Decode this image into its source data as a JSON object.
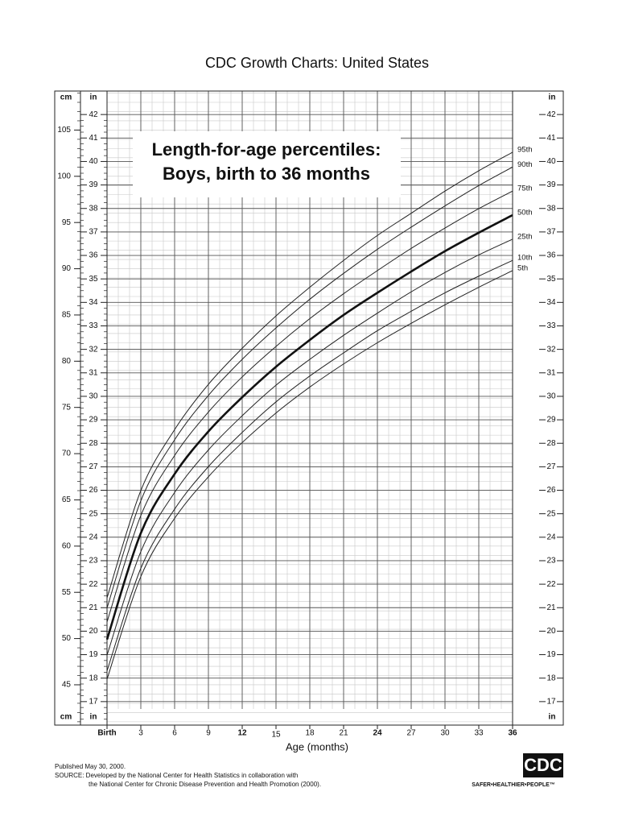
{
  "chart_data": {
    "type": "line",
    "title": "CDC Growth Charts: United States",
    "subtitle": [
      "Length-for-age percentiles:",
      "Boys, birth to 36 months"
    ],
    "x_label": "Age (months)",
    "y_label": "cm",
    "y2_label": "in",
    "x": [
      0,
      3,
      6,
      9,
      12,
      15,
      18,
      21,
      24,
      27,
      30,
      33,
      36
    ],
    "xlim": [
      0,
      36
    ],
    "xticks": [
      {
        "value": 0,
        "label": "Birth"
      },
      3,
      6,
      9,
      12,
      15,
      18,
      21,
      24,
      27,
      30,
      33,
      36
    ],
    "ylim": [
      40.64,
      109.22
    ],
    "yticks": [
      45,
      50,
      55,
      60,
      65,
      70,
      75,
      80,
      85,
      90,
      95,
      100,
      105
    ],
    "y2lim": [
      16,
      43
    ],
    "y2ticks": [
      17,
      18,
      19,
      20,
      21,
      22,
      23,
      24,
      25,
      26,
      27,
      28,
      29,
      30,
      31,
      32,
      33,
      34,
      35,
      36,
      37,
      38,
      39,
      40,
      41,
      42
    ],
    "grid": true,
    "series": [
      {
        "name": "5th",
        "color": "#222222",
        "width": 1,
        "values": [
          45.6,
          56.7,
          63.0,
          67.5,
          71.2,
          74.4,
          77.2,
          79.7,
          82.0,
          84.1,
          86.1,
          88.0,
          89.8
        ]
      },
      {
        "name": "10th",
        "color": "#222222",
        "width": 1,
        "values": [
          46.5,
          57.6,
          64.0,
          68.6,
          72.3,
          75.6,
          78.4,
          80.9,
          83.3,
          85.4,
          87.4,
          89.2,
          90.9
        ]
      },
      {
        "name": "25th",
        "color": "#222222",
        "width": 1,
        "values": [
          48.2,
          59.4,
          65.8,
          70.4,
          74.1,
          77.4,
          80.2,
          82.8,
          85.2,
          87.5,
          89.6,
          91.5,
          93.2
        ]
      },
      {
        "name": "50th",
        "color": "#111111",
        "width": 2.6,
        "values": [
          49.9,
          61.4,
          67.8,
          72.4,
          76.1,
          79.4,
          82.3,
          85.0,
          87.4,
          89.7,
          91.9,
          93.9,
          95.8
        ]
      },
      {
        "name": "75th",
        "color": "#222222",
        "width": 1,
        "values": [
          51.8,
          63.3,
          69.8,
          74.5,
          78.3,
          81.6,
          84.6,
          87.3,
          89.8,
          92.2,
          94.4,
          96.5,
          98.4
        ]
      },
      {
        "name": "90th",
        "color": "#222222",
        "width": 1,
        "values": [
          53.3,
          64.9,
          71.5,
          76.3,
          80.2,
          83.6,
          86.7,
          89.5,
          92.1,
          94.5,
          96.8,
          99.0,
          101.0
        ]
      },
      {
        "name": "95th",
        "color": "#222222",
        "width": 1,
        "values": [
          54.4,
          66.0,
          72.6,
          77.5,
          81.4,
          84.9,
          88.0,
          90.9,
          93.6,
          96.0,
          98.4,
          100.6,
          102.6
        ]
      }
    ],
    "footer": [
      "Published May 30, 2000.",
      "SOURCE: Developed by the National Center for Health Statistics in collaboration with",
      "the National Center for Chronic Disease Prevention and Health Promotion (2000)."
    ],
    "logo": "CDC",
    "logo_tagline": "SAFER•HEALTHIER•PEOPLE™"
  }
}
